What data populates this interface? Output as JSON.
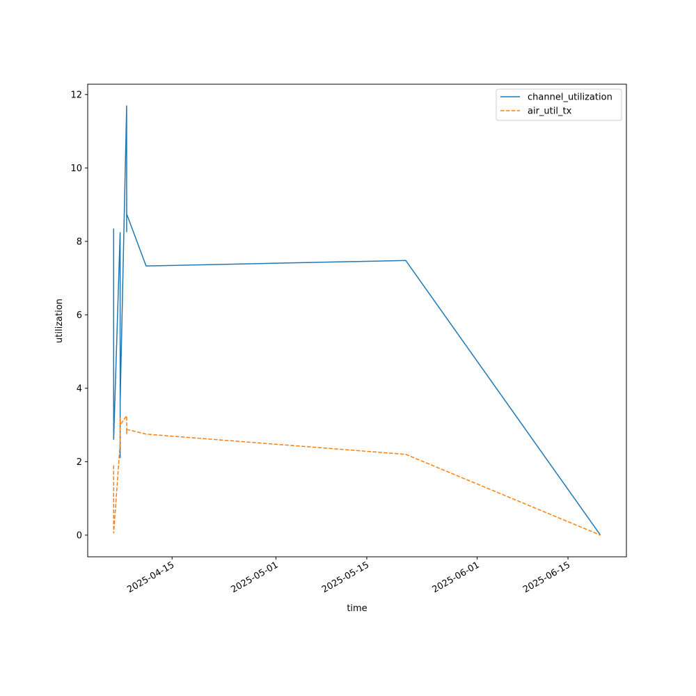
{
  "chart_data": {
    "type": "line",
    "x": [
      "2025-04-06",
      "2025-04-06",
      "2025-04-07",
      "2025-04-07",
      "2025-04-07",
      "2025-04-07",
      "2025-04-08",
      "2025-04-08",
      "2025-04-08",
      "2025-04-11",
      "2025-05-21",
      "2025-06-20"
    ],
    "series": [
      {
        "name": "channel_utilization",
        "color": "#1f77b4",
        "linestyle": "solid",
        "values": [
          8.35,
          2.6,
          8.25,
          2.1,
          5.1,
          3.6,
          11.7,
          8.25,
          8.75,
          7.33,
          7.48,
          0
        ]
      },
      {
        "name": "air_util_tx",
        "color": "#ff7f0e",
        "linestyle": "dashed",
        "values": [
          1.9,
          0.05,
          2.5,
          2.7,
          3.2,
          3.0,
          3.25,
          2.75,
          2.88,
          2.75,
          2.2,
          0
        ]
      }
    ],
    "xlabel": "time",
    "ylabel": "utilization",
    "xlim": [
      "2025-04-02",
      "2025-06-24"
    ],
    "xticks": [
      "2025-04-15",
      "2025-05-01",
      "2025-05-15",
      "2025-06-01",
      "2025-06-15"
    ],
    "ylim": [
      -0.59,
      12.28
    ],
    "yticks": [
      0,
      2,
      4,
      6,
      8,
      10,
      12
    ],
    "legend": "upper right",
    "grid": false
  }
}
